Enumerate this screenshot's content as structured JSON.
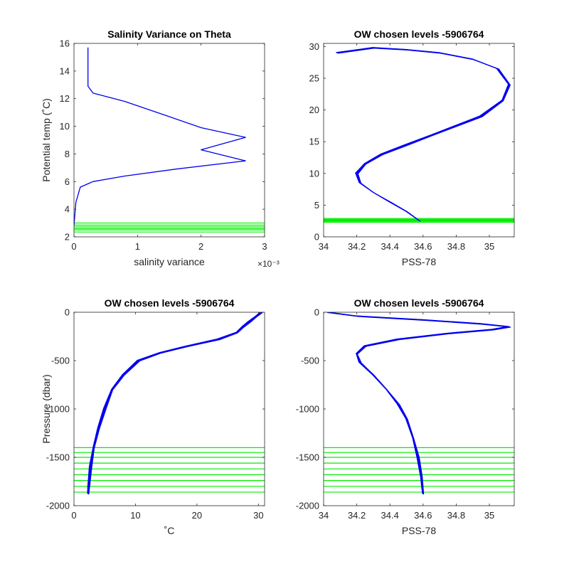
{
  "colors": {
    "profile": "#0000ee",
    "levels": "#00ee00",
    "axis": "#262626"
  },
  "chart_data": [
    {
      "type": "line",
      "title": "Salinity Variance on Theta",
      "xlabel": "salinity variance",
      "x_exponent_label": "×10⁻³",
      "ylabel": "Potential temp (˚C)",
      "xlim": [
        0,
        3
      ],
      "ylim": [
        2,
        16
      ],
      "xticks": [
        0,
        1,
        2,
        3
      ],
      "yticks": [
        2,
        4,
        6,
        8,
        10,
        12,
        14,
        16
      ],
      "series": [
        {
          "x": [
            0.22,
            0.22,
            0.3,
            0.8,
            1.5,
            2.0,
            2.7,
            2.0,
            2.7,
            1.6,
            0.8,
            0.3,
            0.1,
            0.03,
            0.0
          ],
          "y": [
            15.7,
            12.9,
            12.4,
            11.8,
            10.7,
            9.9,
            9.2,
            8.3,
            7.5,
            6.9,
            6.4,
            6.0,
            5.6,
            4.5,
            2.8
          ]
        }
      ],
      "horizontal_levels": [
        2.35,
        2.5,
        2.6,
        2.72,
        2.85,
        3.0
      ]
    },
    {
      "type": "line",
      "title": "OW chosen levels -5906764",
      "xlabel": "PSS-78",
      "ylabel": "",
      "xlim": [
        34.0,
        35.15
      ],
      "ylim": [
        0,
        30.5
      ],
      "xticks": [
        34,
        34.2,
        34.4,
        34.6,
        34.8,
        35
      ],
      "yticks": [
        0,
        5,
        10,
        15,
        20,
        25,
        30
      ],
      "series": [
        {
          "x": [
            34.58,
            34.5,
            34.4,
            34.3,
            34.22,
            34.2,
            34.25,
            34.35,
            34.5,
            34.65,
            34.8,
            34.95,
            35.08,
            35.12,
            35.05,
            34.9,
            34.7,
            34.5,
            34.3,
            34.08
          ],
          "y": [
            2.5,
            4.0,
            5.5,
            7.0,
            8.5,
            10.0,
            11.5,
            13.0,
            14.5,
            16.0,
            17.5,
            19.0,
            21.5,
            24.0,
            26.5,
            28.0,
            29.0,
            29.5,
            29.8,
            29.0
          ]
        }
      ],
      "horizontal_levels": [
        2.3,
        2.45,
        2.55,
        2.65,
        2.75,
        2.9
      ]
    },
    {
      "type": "line",
      "title": "OW chosen levels -5906764",
      "xlabel": "˚C",
      "ylabel": "Pressure (dbar)",
      "xlim": [
        0,
        31
      ],
      "ylim": [
        -2000,
        0
      ],
      "xticks": [
        0,
        10,
        20,
        30
      ],
      "yticks": [
        0,
        -500,
        -1000,
        -1500,
        -2000
      ],
      "series": [
        {
          "x": [
            2.3,
            2.4,
            2.7,
            3.2,
            4.0,
            5.0,
            6.2,
            8.0,
            10.5,
            14.0,
            18.5,
            23.5,
            26.5,
            27.5,
            28.5,
            29.5,
            30.5
          ],
          "y": [
            -1880,
            -1800,
            -1600,
            -1400,
            -1200,
            -1000,
            -800,
            -650,
            -500,
            -420,
            -350,
            -280,
            -210,
            -150,
            -100,
            -50,
            0
          ]
        }
      ],
      "horizontal_levels": [
        -1400,
        -1450,
        -1500,
        -1560,
        -1620,
        -1680,
        -1740,
        -1800,
        -1860
      ]
    },
    {
      "type": "line",
      "title": "OW chosen levels -5906764",
      "xlabel": "PSS-78",
      "ylabel": "",
      "xlim": [
        34.0,
        35.15
      ],
      "ylim": [
        -2000,
        0
      ],
      "xticks": [
        34,
        34.2,
        34.4,
        34.6,
        34.8,
        35
      ],
      "yticks": [
        0,
        -500,
        -1000,
        -1500,
        -2000
      ],
      "series": [
        {
          "x": [
            34.6,
            34.59,
            34.57,
            34.54,
            34.5,
            34.45,
            34.38,
            34.3,
            34.22,
            34.2,
            34.25,
            34.45,
            34.75,
            35.02,
            35.12,
            34.95,
            34.6,
            34.2,
            34.02
          ],
          "y": [
            -1880,
            -1700,
            -1500,
            -1300,
            -1100,
            -950,
            -800,
            -650,
            -520,
            -430,
            -350,
            -280,
            -220,
            -180,
            -150,
            -120,
            -80,
            -40,
            0
          ]
        }
      ],
      "horizontal_levels": [
        -1400,
        -1450,
        -1500,
        -1560,
        -1620,
        -1680,
        -1740,
        -1800,
        -1860
      ]
    }
  ]
}
